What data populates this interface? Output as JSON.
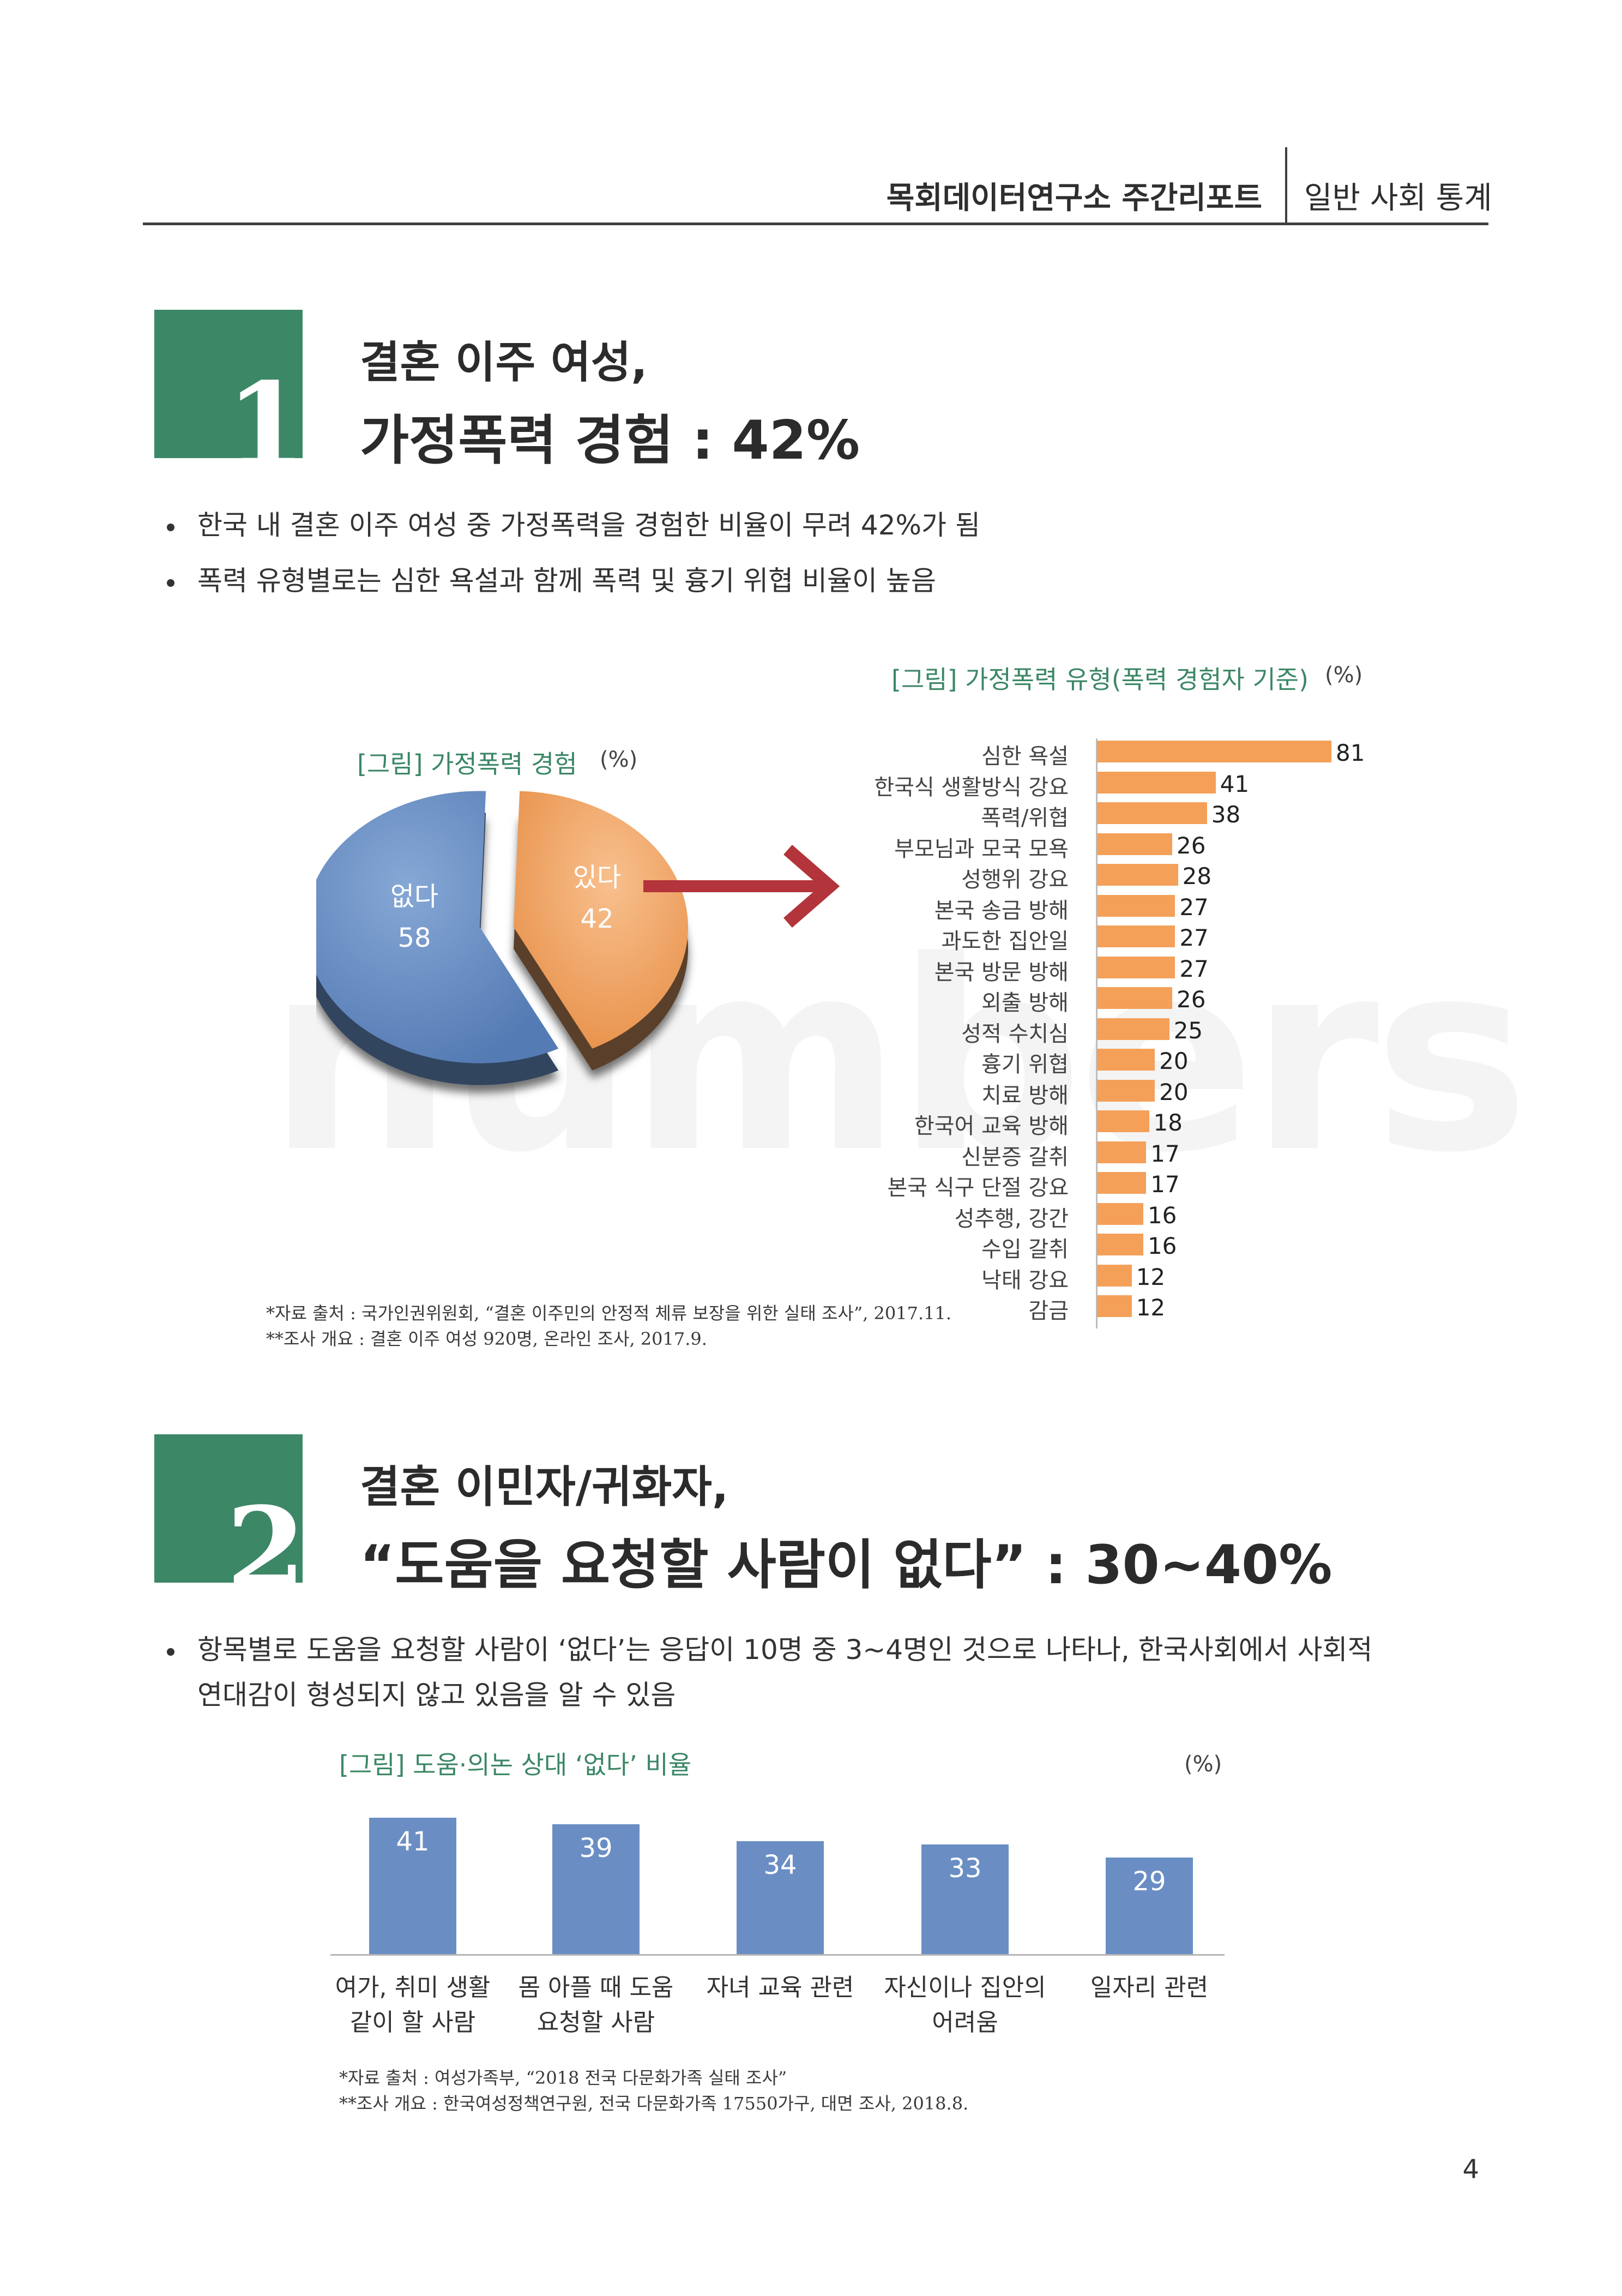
{
  "header": {
    "left": "목회데이터연구소 주간리포트",
    "right": "일반 사회 통계"
  },
  "watermark": "numbers",
  "section1": {
    "number": "1",
    "title_line1": "결혼 이주 여성,",
    "title_line2": "가정폭력 경험 : 42%",
    "bullets": [
      "한국 내 결혼 이주 여성 중 가정폭력을 경험한 비율이 무려 42%가 됨",
      "폭력 유형별로는 심한 욕설과 함께 폭력 및 흉기 위협 비율이 높음"
    ],
    "pie": {
      "title": "[그림] 가정폭력 경험",
      "unit": "(%)"
    },
    "hbar": {
      "title": "[그림] 가정폭력 유형(폭력 경험자 기준)",
      "unit": "(%)"
    },
    "notes": [
      "*자료 출처 : 국가인권위원회, “결혼 이주민의 안정적 체류 보장을 위한 실태 조사”, 2017.11.",
      "**조사 개요 : 결혼 이주 여성 920명, 온라인 조사, 2017.9."
    ]
  },
  "section2": {
    "number": "2",
    "title_line1": "결혼 이민자/귀화자,",
    "title_line2": "“도움을 요청할 사람이 없다” : 30~40%",
    "bullet_line1": "항목별로 도움을 요청할 사람이 ‘없다’는 응답이 10명 중 3~4명인 것으로 나타나, 한국사회에서 사회적",
    "bullet_line2": "연대감이 형성되지 않고 있음을 알 수 있음",
    "vbar": {
      "title": "[그림] 도움·의논 상대 ‘없다’ 비율",
      "unit": "(%)"
    },
    "notes": [
      "*자료 출처 : 여성가족부, “2018 전국 다문화가족 실태 조사”",
      "**조사 개요 : 한국여성정책연구원, 전국 다문화가족 17550가구, 대면 조사, 2018.8."
    ]
  },
  "chart_data": [
    {
      "type": "pie",
      "title": "[그림] 가정폭력 경험",
      "unit": "(%)",
      "slices": [
        {
          "label": "없다",
          "value": 58,
          "color": "#5f86bf"
        },
        {
          "label": "있다",
          "value": 42,
          "color": "#f0a262"
        }
      ]
    },
    {
      "type": "bar",
      "orientation": "horizontal",
      "title": "[그림] 가정폭력 유형(폭력 경험자 기준)",
      "unit": "(%)",
      "color": "#f4a059",
      "xlim": [
        0,
        81
      ],
      "categories": [
        "심한 욕설",
        "한국식 생활방식 강요",
        "폭력/위협",
        "부모님과 모국 모욕",
        "성행위 강요",
        "본국 송금 방해",
        "과도한 집안일",
        "본국 방문 방해",
        "외출 방해",
        "성적 수치심",
        "흉기 위협",
        "치료 방해",
        "한국어 교육 방해",
        "신분증 갈취",
        "본국 식구 단절 강요",
        "성추행, 강간",
        "수입 갈취",
        "낙태 강요",
        "감금"
      ],
      "values": [
        81,
        41,
        38,
        26,
        28,
        27,
        27,
        27,
        26,
        25,
        20,
        20,
        18,
        17,
        17,
        16,
        16,
        12,
        12
      ]
    },
    {
      "type": "bar",
      "orientation": "vertical",
      "title": "[그림] 도움·의논 상대 ‘없다’ 비율",
      "unit": "(%)",
      "color": "#6a8ec4",
      "ylim": [
        0,
        41
      ],
      "categories": [
        [
          "여가, 취미 생활",
          "같이 할 사람"
        ],
        [
          "몸 아플 때 도움",
          "요청할 사람"
        ],
        [
          "자녀 교육 관련"
        ],
        [
          "자신이나 집안의",
          "어려움"
        ],
        [
          "일자리 관련"
        ]
      ],
      "values": [
        41,
        39,
        34,
        33,
        29
      ]
    }
  ],
  "page_number": "4"
}
